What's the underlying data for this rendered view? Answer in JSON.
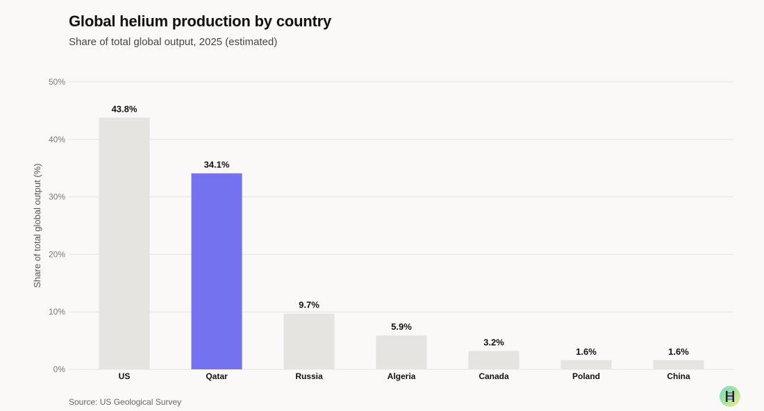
{
  "title": "Global helium production by country",
  "subtitle": "Share of total global output, 2025 (estimated)",
  "source": "Source: US Geological Survey",
  "colors": {
    "default_bar": "#e6e4e0",
    "highlight_bar": "#7472ee",
    "grid": "#e4e2de",
    "tick_text": "#777777",
    "label_text": "#111111"
  },
  "chart_data": {
    "type": "bar",
    "title": "Global helium production by country",
    "subtitle": "Share of total global output, 2025 (estimated)",
    "xlabel": "",
    "ylabel": "Share of total global output (%)",
    "ylim": [
      0,
      50
    ],
    "yticks": [
      0,
      10,
      20,
      30,
      40,
      50
    ],
    "ytick_labels": [
      "0%",
      "10%",
      "20%",
      "30%",
      "40%",
      "50%"
    ],
    "grid": true,
    "categories": [
      "US",
      "Qatar",
      "Russia",
      "Algeria",
      "Canada",
      "Poland",
      "China"
    ],
    "values": [
      43.8,
      34.1,
      9.7,
      5.9,
      3.2,
      1.6,
      1.6
    ],
    "data_labels": [
      "43.8%",
      "34.1%",
      "9.7%",
      "5.9%",
      "3.2%",
      "1.6%",
      "1.6%"
    ],
    "highlight_category": "Qatar"
  }
}
